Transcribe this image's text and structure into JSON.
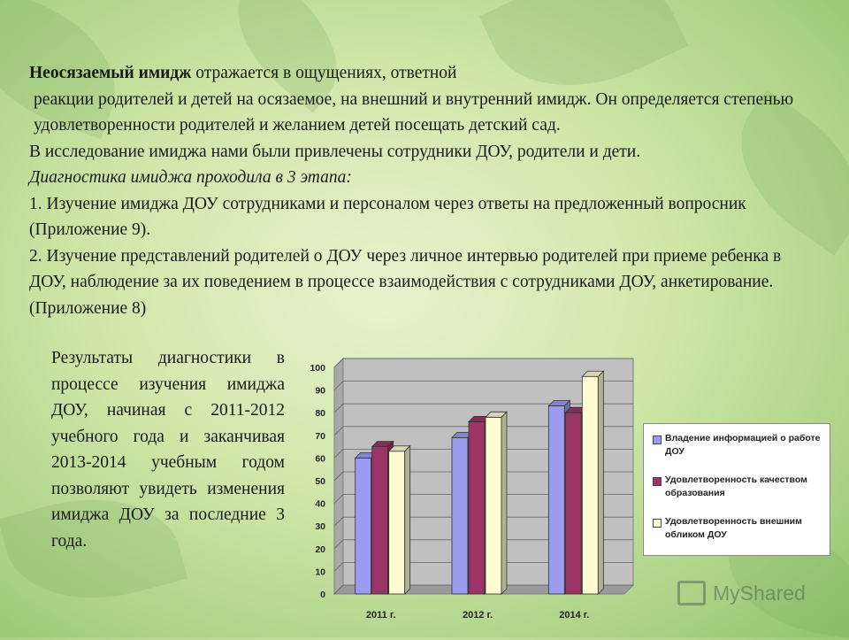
{
  "intro": {
    "bold_phrase": "Неосязаемый имидж",
    "line1_rest": " отражается в ощущениях, ответной",
    "line2": "реакции родителей и детей на осязаемое, на внешний и внутренний имидж. Он определяется степенью удовлетворенности родителей и желанием детей посещать детский сад.",
    "line3": "В  исследование имиджа нами были привлечены сотрудники ДОУ, родители и дети.",
    "italic_line": "Диагностика имиджа  проходила в 3 этапа:",
    "step1": "1. Изучение имиджа ДОУ сотрудниками и персоналом через ответы на предложенный вопросник (Приложение 9).",
    "step2": "2. Изучение представлений родителей о ДОУ через личное интервью родителей при приеме ребенка в ДОУ, наблюдение за их поведением в процессе взаимодействия с сотрудниками ДОУ, анкетирование. (Приложение 8)"
  },
  "results_text": "Результаты диагностики в процессе изучения имиджа ДОУ, начиная с 2011-2012 учебного года и заканчивая 2013-2014 учебным годом позволяют увидеть изменения имиджа ДОУ за последние 3 года.",
  "watermark": "MyShared",
  "chart_data": {
    "type": "bar",
    "categories": [
      "2011 г.",
      "2012 г.",
      "2014 г."
    ],
    "series": [
      {
        "name": "Владение информацией о работе ДОУ",
        "values": [
          60,
          69,
          83
        ],
        "color": "#9b9bf0"
      },
      {
        "name": "Удовлетворенность качеством образования",
        "values": [
          65,
          76,
          80
        ],
        "color": "#9a3566"
      },
      {
        "name": "Удовлетворенность внешним обликом ДОУ",
        "values": [
          63,
          78,
          96
        ],
        "color": "#fcfcd0"
      }
    ],
    "yticks": [
      "0",
      "10",
      "20",
      "30",
      "40",
      "50",
      "60",
      "70",
      "80",
      "90",
      "100"
    ],
    "ylim": [
      0,
      100
    ],
    "grid": true,
    "legend_position": "right",
    "style": "3d"
  }
}
